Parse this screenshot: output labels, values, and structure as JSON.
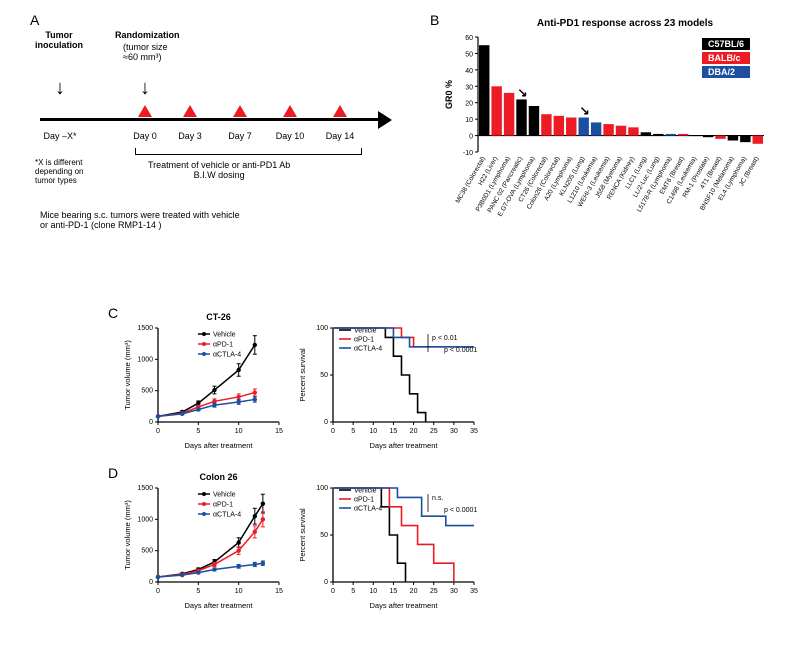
{
  "labels": {
    "A": "A",
    "B": "B",
    "C": "C",
    "D": "D"
  },
  "panelA": {
    "tumor_inoc": "Tumor\ninoculation",
    "randomization": "Randomization",
    "rand_detail": "(tumor size\n≈60 mm³)",
    "days": [
      "Day –X*",
      "Day 0",
      "Day 3",
      "Day 7",
      "Day 10",
      "Day 14"
    ],
    "footnote": "*X is different\ndepending on\ntumor types",
    "treatment": "Treatment of vehicle or anti-PD1 Ab\nB.I.W dosing",
    "caption": "Mice bearing s.c. tumors were treated with vehicle\nor anti-PD-1 (clone RMP1-14 )"
  },
  "panelB": {
    "title": "Anti-PD1 response across 23 models",
    "ylabel": "GR0 %",
    "strains": [
      {
        "name": "C57BL/6",
        "color": "#000000"
      },
      {
        "name": "BALB/c",
        "color": "#ed1c24"
      },
      {
        "name": "DBA/2",
        "color": "#1c4fa1"
      }
    ],
    "ylim": [
      -10,
      60
    ],
    "yticks": [
      -10,
      0,
      10,
      20,
      30,
      40,
      50,
      60
    ],
    "bars": [
      {
        "label": "MC38 (Colorectal)",
        "v": 55,
        "c": "#000000"
      },
      {
        "label": "H22 (Liver)",
        "v": 30,
        "c": "#ed1c24"
      },
      {
        "label": "P3B0D1 (Lymphoma)",
        "v": 26,
        "c": "#ed1c24"
      },
      {
        "label": "PANC 02 (Pancreatic)",
        "v": 22,
        "c": "#000000",
        "arrow": true
      },
      {
        "label": "E.G7-OVA (Lymphoma)",
        "v": 18,
        "c": "#000000"
      },
      {
        "label": "CT26 (Colorectal)",
        "v": 13,
        "c": "#ed1c24"
      },
      {
        "label": "Colon26 (Colorectal)",
        "v": 12,
        "c": "#ed1c24"
      },
      {
        "label": "A20 (Lymphoma)",
        "v": 11,
        "c": "#ed1c24"
      },
      {
        "label": "KLN205 (Lung)",
        "v": 11,
        "c": "#1c4fa1",
        "arrow": true
      },
      {
        "label": "L1210 (Leukemia)",
        "v": 8,
        "c": "#1c4fa1"
      },
      {
        "label": "WEHI-3 (Leukemia)",
        "v": 7,
        "c": "#ed1c24"
      },
      {
        "label": "J558 (Myeloma)",
        "v": 6,
        "c": "#ed1c24"
      },
      {
        "label": "RENCA (Kidney)",
        "v": 5,
        "c": "#ed1c24"
      },
      {
        "label": "LLC1 (Lung)",
        "v": 2,
        "c": "#000000"
      },
      {
        "label": "LL/2-Luc (Lung)",
        "v": 1,
        "c": "#000000"
      },
      {
        "label": "L5178-R (Lymphoma)",
        "v": 1,
        "c": "#1c4fa1"
      },
      {
        "label": "EMT6 (Breast)",
        "v": 1,
        "c": "#ed1c24"
      },
      {
        "label": "C1498 (Leukemia)",
        "v": 0,
        "c": "#000000"
      },
      {
        "label": "RM-1 (Prostate)",
        "v": -1,
        "c": "#000000"
      },
      {
        "label": "4T1 (Breast)",
        "v": -2,
        "c": "#ed1c24"
      },
      {
        "label": "BNSF10 (Melanoma)",
        "v": -3,
        "c": "#000000"
      },
      {
        "label": "EL4 (Lymphoma)",
        "v": -4,
        "c": "#000000"
      },
      {
        "label": "JC (Breast)",
        "v": -5,
        "c": "#ed1c24"
      }
    ]
  },
  "growth": {
    "series": [
      {
        "name": "Vehicle",
        "color": "#000000"
      },
      {
        "name": "αPD-1",
        "color": "#ed1c24"
      },
      {
        "name": "αCTLA-4",
        "color": "#1c4fa1"
      }
    ],
    "xlabel": "Days after treatment",
    "ylabel_vol": "Tumor volume (mm³)",
    "ylabel_surv": "Percent survival",
    "xlim_vol": [
      0,
      15
    ],
    "xticks_vol": [
      0,
      5,
      10,
      15
    ],
    "ylim_vol": [
      0,
      1500
    ],
    "yticks_vol": [
      0,
      500,
      1000,
      1500
    ],
    "xlim_surv": [
      0,
      35
    ],
    "xticks_surv": [
      0,
      5,
      10,
      15,
      20,
      25,
      30,
      35
    ],
    "ylim_surv": [
      0,
      100
    ],
    "yticks_surv": [
      0,
      50,
      100
    ]
  },
  "panelC": {
    "title": "CT-26",
    "vol_x": [
      0,
      3,
      5,
      7,
      10,
      12
    ],
    "vol": {
      "Vehicle": [
        90,
        160,
        300,
        510,
        830,
        1230
      ],
      "αPD-1": [
        90,
        140,
        240,
        330,
        400,
        470
      ],
      "αCTLA-4": [
        90,
        130,
        200,
        270,
        320,
        360
      ]
    },
    "surv": {
      "Vehicle": [
        [
          0,
          100
        ],
        [
          13,
          100
        ],
        [
          13,
          90
        ],
        [
          15,
          90
        ],
        [
          15,
          70
        ],
        [
          17,
          70
        ],
        [
          17,
          50
        ],
        [
          19,
          50
        ],
        [
          19,
          30
        ],
        [
          21,
          30
        ],
        [
          21,
          10
        ],
        [
          23,
          10
        ],
        [
          23,
          0
        ]
      ],
      "αPD-1": [
        [
          0,
          100
        ],
        [
          17,
          100
        ],
        [
          17,
          90
        ],
        [
          20,
          90
        ],
        [
          20,
          80
        ],
        [
          35,
          80
        ]
      ],
      "αCTLA-4": [
        [
          0,
          100
        ],
        [
          15,
          100
        ],
        [
          15,
          90
        ],
        [
          19,
          90
        ],
        [
          19,
          80
        ],
        [
          35,
          80
        ]
      ]
    },
    "pvals": {
      "pd1": "p < 0.01",
      "ctla4": "p < 0.0001"
    }
  },
  "panelD": {
    "title": "Colon 26",
    "vol_x": [
      0,
      3,
      5,
      7,
      10,
      12,
      13
    ],
    "vol": {
      "Vehicle": [
        80,
        130,
        200,
        320,
        630,
        1050,
        1250
      ],
      "αPD-1": [
        80,
        120,
        180,
        280,
        500,
        800,
        1000
      ],
      "αCTLA-4": [
        80,
        110,
        150,
        200,
        250,
        280,
        300
      ]
    },
    "surv": {
      "Vehicle": [
        [
          0,
          100
        ],
        [
          12,
          100
        ],
        [
          12,
          80
        ],
        [
          14,
          80
        ],
        [
          14,
          50
        ],
        [
          16,
          50
        ],
        [
          16,
          20
        ],
        [
          18,
          20
        ],
        [
          18,
          0
        ]
      ],
      "αPD-1": [
        [
          0,
          100
        ],
        [
          14,
          100
        ],
        [
          14,
          80
        ],
        [
          17,
          80
        ],
        [
          17,
          60
        ],
        [
          21,
          60
        ],
        [
          21,
          40
        ],
        [
          25,
          40
        ],
        [
          25,
          20
        ],
        [
          30,
          20
        ],
        [
          30,
          0
        ]
      ],
      "αCTLA-4": [
        [
          0,
          100
        ],
        [
          16,
          100
        ],
        [
          16,
          90
        ],
        [
          22,
          90
        ],
        [
          22,
          70
        ],
        [
          28,
          70
        ],
        [
          28,
          60
        ],
        [
          35,
          60
        ]
      ]
    },
    "pvals": {
      "pd1": "n.s.",
      "ctla4": "p < 0.0001"
    }
  }
}
